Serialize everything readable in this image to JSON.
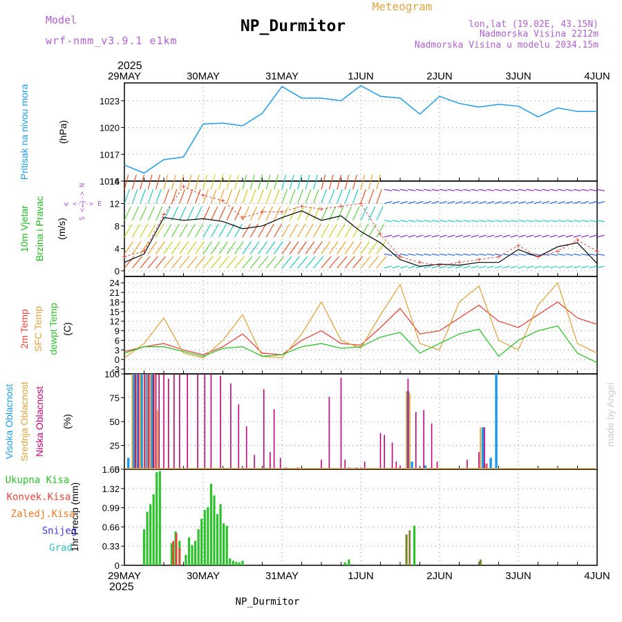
{
  "header": {
    "model_label": "Model",
    "model_name": "wrf-nmm_v3.9.1 e1km",
    "title": "NP_Durmitor",
    "subtitle": "Meteogram",
    "lonlat": "lon,lat (19.02E, 43.15N)",
    "elevation": "Nadmorska Visina 2212m",
    "model_elevation": "Nadmorska Visina u modelu 2034.15m",
    "year_top": "2025",
    "year_bottom": "2025",
    "footer": "NP_Durmitor",
    "credit": "made by Angel"
  },
  "colors": {
    "pressure": "#1e9be8",
    "wind_label": "#1fb91f",
    "temp2m": "#e8433a",
    "sfc_temp": "#e0a540",
    "dewpt": "#2cc22c",
    "high_cloud": "#1e9be8",
    "mid_cloud": "#e0a540",
    "low_cloud": "#c2007a",
    "total_precip": "#2cc22c",
    "conv_precip": "#e8433a",
    "frz_precip": "#f07a2a",
    "snow": "#4040e0",
    "hail": "#2ec3c3",
    "purple": "#b060d0"
  },
  "chart_data": [
    {
      "type": "line",
      "panel": "pressure",
      "ylabel_lines": [
        "Pritisak na nivou mora",
        "(hPa)"
      ],
      "ylim": [
        1014,
        1025
      ],
      "yticks": [
        "1014",
        "1017",
        "1020",
        "1023"
      ],
      "ytick_values": [
        1014,
        1017,
        1020,
        1023
      ],
      "x": [
        0,
        0.25,
        0.5,
        0.75,
        1,
        1.25,
        1.5,
        1.75,
        2,
        2.25,
        2.5,
        2.75,
        3,
        3.25,
        3.5,
        3.75,
        4,
        4.25,
        4.5,
        4.75,
        5,
        5.25,
        5.5,
        5.75,
        6
      ],
      "values": [
        1015.8,
        1014.9,
        1016.4,
        1016.7,
        1020.4,
        1020.5,
        1020.2,
        1021.6,
        1024.6,
        1023.3,
        1023.3,
        1023.0,
        1024.7,
        1023.5,
        1023.3,
        1021.5,
        1023.5,
        1022.7,
        1022.3,
        1022.6,
        1022.4,
        1021.2,
        1022.2,
        1021.8,
        1021.8
      ],
      "grid": true
    },
    {
      "type": "line",
      "panel": "wind",
      "ylabel_lines": [
        "10m Vjetar",
        "Brzina i Pravac",
        "(m/s)"
      ],
      "compass_label": "w <-|-> E",
      "compass_label_v": "S <-|-> N",
      "ylim": [
        -1,
        16
      ],
      "yticks": [
        "0",
        "4",
        "8",
        "12",
        "16"
      ],
      "ytick_values": [
        0,
        4,
        8,
        12,
        16
      ],
      "series": [
        {
          "kind": "speed",
          "x": [
            0,
            0.25,
            0.5,
            0.75,
            1,
            1.25,
            1.5,
            1.75,
            2,
            2.25,
            2.5,
            2.75,
            3,
            3.25,
            3.5,
            3.75,
            4,
            4.25,
            4.5,
            4.75,
            5,
            5.25,
            5.5,
            5.75,
            6
          ],
          "values": [
            1.5,
            3.0,
            9.5,
            9.0,
            9.3,
            8.8,
            7.5,
            8.0,
            9.5,
            10.7,
            9.0,
            9.8,
            7.0,
            5.0,
            2.0,
            0.8,
            1.2,
            1.0,
            1.5,
            1.5,
            3.8,
            2.5,
            4.3,
            5.0,
            1.3
          ]
        },
        {
          "kind": "gust",
          "x": [
            0,
            0.25,
            0.5,
            0.75,
            1,
            1.25,
            1.5,
            1.75,
            2,
            2.25,
            2.5,
            2.75,
            3,
            3.25,
            3.5,
            3.75,
            4,
            4.25,
            4.5,
            4.75,
            5,
            5.25,
            5.5,
            5.75,
            6
          ],
          "values": [
            2.5,
            3.5,
            10.0,
            15.0,
            13.5,
            12.5,
            9.5,
            10.5,
            10.5,
            11.5,
            11.0,
            11.5,
            12.0,
            6.5,
            2.5,
            1.5,
            1.0,
            1.5,
            2.0,
            2.5,
            4.5,
            2.5,
            3.5,
            5.5,
            3.5
          ]
        }
      ],
      "grid": true
    },
    {
      "type": "line",
      "panel": "temperature",
      "ylabel_lines": [
        "2m Temp",
        "SFC Temp",
        "dewpt Temp",
        "(C)"
      ],
      "ylim": [
        -4.5,
        26
      ],
      "yticks": [
        "-3",
        "0",
        "3",
        "6",
        "9",
        "12",
        "15",
        "18",
        "21",
        "24"
      ],
      "ytick_values": [
        -3,
        0,
        3,
        6,
        9,
        12,
        15,
        18,
        21,
        24
      ],
      "x": [
        0,
        0.25,
        0.5,
        0.75,
        1,
        1.25,
        1.5,
        1.75,
        2,
        2.25,
        2.5,
        2.75,
        3,
        3.25,
        3.5,
        3.75,
        4,
        4.25,
        4.5,
        4.75,
        5,
        5.25,
        5.5,
        5.75,
        6
      ],
      "series": [
        {
          "name": "2m Temp",
          "values": [
            2.5,
            4.0,
            5.0,
            3.0,
            1.5,
            4.0,
            8.0,
            2.0,
            1.5,
            6.0,
            9.0,
            5.0,
            4.5,
            10.0,
            16.0,
            8.0,
            9.0,
            13.0,
            17.0,
            12.0,
            10.0,
            14.0,
            18.0,
            13.0,
            11.0
          ]
        },
        {
          "name": "SFC Temp",
          "values": [
            0.5,
            5.0,
            13.0,
            2.0,
            0.5,
            6.0,
            14.0,
            1.0,
            0.5,
            8.0,
            18.0,
            6.0,
            3.5,
            14.0,
            23.5,
            5.0,
            3.0,
            18.0,
            23.0,
            6.0,
            3.0,
            17.0,
            24.0,
            5.0,
            2.0
          ]
        },
        {
          "name": "dewpt Temp",
          "values": [
            2.0,
            4.0,
            4.0,
            2.5,
            1.0,
            3.5,
            4.0,
            1.0,
            1.5,
            4.0,
            5.0,
            3.5,
            4.0,
            7.0,
            8.5,
            2.0,
            5.0,
            8.0,
            9.5,
            1.0,
            6.0,
            9.0,
            10.5,
            2.0,
            -1.0
          ]
        }
      ],
      "grid": true
    },
    {
      "type": "bar",
      "panel": "clouds",
      "ylabel_lines": [
        "Visoka Oblacnost",
        "Srednja Oblacnost",
        "Niska Oblacnost",
        "(%)"
      ],
      "ylim": [
        0,
        100
      ],
      "yticks": [
        "0",
        "25",
        "50",
        "75",
        "100"
      ],
      "ytick_values": [
        0,
        25,
        50,
        75,
        100
      ],
      "series": [
        {
          "name": "Visoka Oblacnost",
          "x": [
            0.05,
            0.12,
            0.16,
            0.22,
            0.29,
            0.35,
            3.6,
            3.65,
            3.82,
            4.55,
            4.65,
            4.72
          ],
          "values": [
            12,
            100,
            100,
            100,
            100,
            100,
            82,
            8,
            4,
            44,
            12,
            100
          ]
        },
        {
          "name": "Srednja Oblacnost",
          "x": [
            0.1,
            0.15,
            0.2,
            0.25,
            0.3,
            0.33,
            0.38,
            0.42,
            3.58,
            3.62,
            4.52,
            4.58
          ],
          "values": [
            100,
            100,
            100,
            100,
            100,
            100,
            100,
            62,
            82,
            80,
            44,
            6
          ]
        },
        {
          "name": "Niska Oblacnost",
          "x": [
            0.14,
            0.18,
            0.26,
            0.31,
            0.37,
            0.4,
            0.44,
            0.5,
            0.56,
            0.63,
            0.7,
            0.8,
            0.93,
            1.02,
            1.1,
            1.22,
            1.35,
            1.45,
            1.55,
            1.65,
            1.77,
            1.85,
            1.9,
            1.98,
            2.05,
            2.2,
            2.5,
            2.6,
            2.75,
            2.8,
            2.85,
            2.95,
            3.0,
            3.05,
            3.25,
            3.3,
            3.4,
            3.45,
            3.5,
            3.6,
            3.7,
            3.8,
            3.9,
            3.97,
            4.35,
            4.5,
            4.57,
            4.6
          ],
          "values": [
            100,
            100,
            100,
            100,
            100,
            100,
            100,
            100,
            95,
            100,
            100,
            100,
            100,
            100,
            100,
            98,
            90,
            68,
            45,
            15,
            84,
            18,
            63,
            12,
            2,
            2,
            10,
            76,
            96,
            10,
            2,
            2,
            2,
            8,
            38,
            36,
            28,
            8,
            4,
            95,
            60,
            62,
            48,
            8,
            10,
            18,
            44,
            6
          ]
        }
      ],
      "grid": true
    },
    {
      "type": "bar",
      "panel": "precip",
      "ylabel_lines": [
        "1hr Precip (mm)"
      ],
      "legend": [
        "Ukupna Kisa",
        "Konvek.Kisa",
        "Zaledj.Kisa",
        "Snijeg",
        "Grad"
      ],
      "ylim": [
        0,
        1.65
      ],
      "yticks": [
        "0",
        "0.33",
        "0.66",
        "0.99",
        "1.32",
        "1.65"
      ],
      "ytick_values": [
        0,
        0.33,
        0.66,
        0.99,
        1.32,
        1.65
      ],
      "xticks": [
        "29MAY",
        "30MAY",
        "31MAY",
        "1JUN",
        "2JUN",
        "3JUN",
        "4JUN"
      ],
      "series": [
        {
          "name": "Ukupna Kisa",
          "x": [
            0.25,
            0.29,
            0.33,
            0.37,
            0.41,
            0.45,
            0.6,
            0.65,
            0.7,
            0.78,
            0.82,
            0.86,
            0.9,
            0.94,
            0.98,
            1.02,
            1.06,
            1.1,
            1.14,
            1.18,
            1.22,
            1.26,
            1.3,
            1.34,
            1.38,
            1.42,
            1.46,
            1.5,
            2.8,
            2.85,
            3.58,
            3.68,
            4.52
          ],
          "values": [
            0.62,
            0.92,
            1.05,
            1.22,
            1.6,
            1.62,
            0.38,
            0.58,
            0.42,
            0.18,
            0.48,
            0.35,
            0.42,
            0.62,
            0.8,
            0.95,
            1.0,
            1.4,
            1.2,
            0.88,
            1.05,
            0.72,
            0.68,
            0.12,
            0.08,
            0.06,
            0.05,
            0.08,
            0.05,
            0.1,
            0.53,
            0.68,
            0.1
          ]
        },
        {
          "name": "Konvek.Kisa",
          "x": [
            0.62,
            0.66,
            0.7
          ],
          "values": [
            0.42,
            0.55,
            0.3
          ]
        },
        {
          "name": "Zaledj.Kisa",
          "x": [
            3.58,
            3.62,
            4.52
          ],
          "values": [
            0.52,
            0.6,
            0.1
          ]
        }
      ],
      "grid": true
    }
  ]
}
